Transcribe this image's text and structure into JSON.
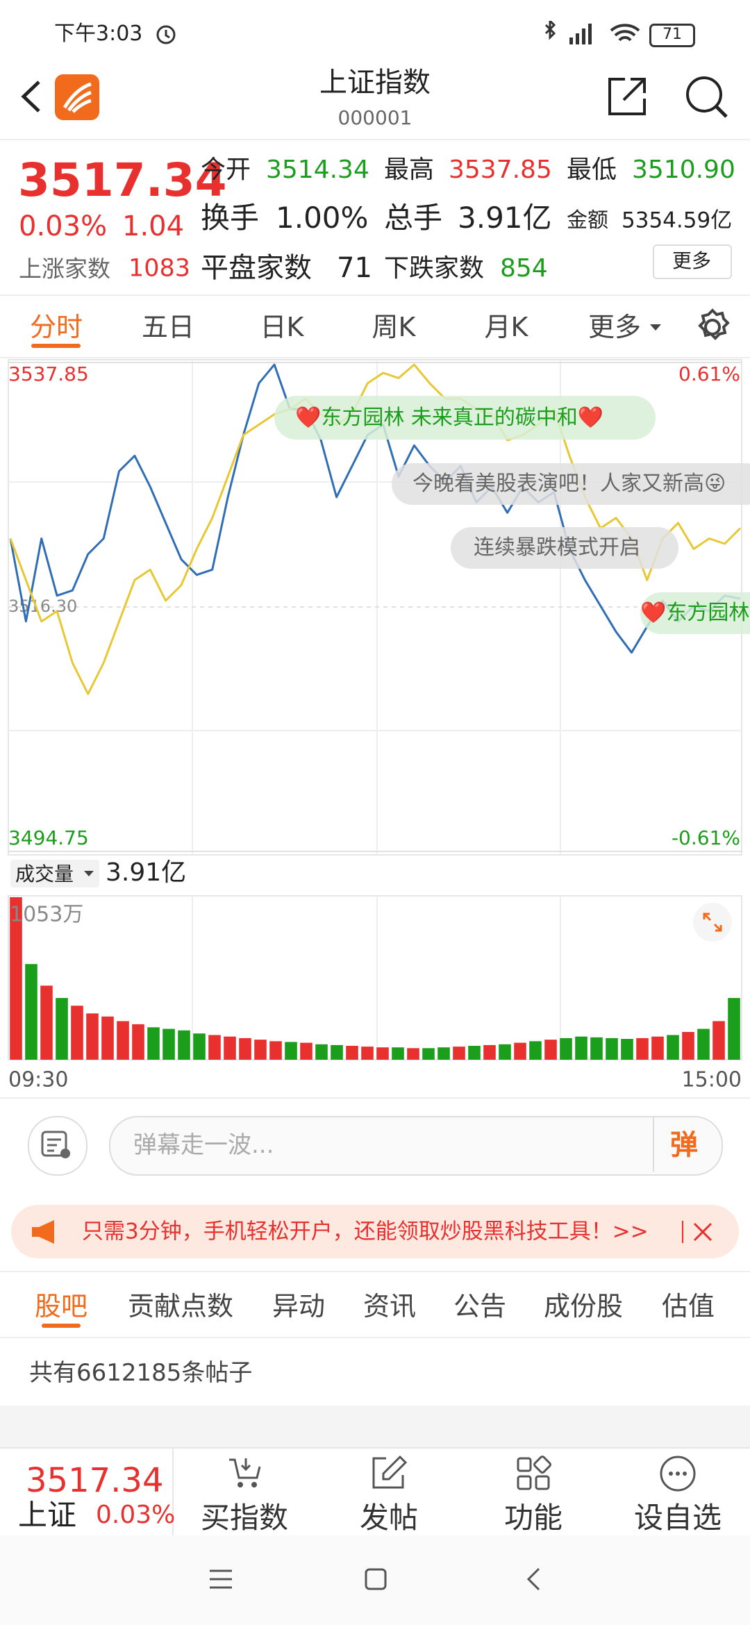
{
  "status_bar": {
    "time": "下午3:03",
    "battery": "71"
  },
  "header": {
    "title": "上证指数",
    "code": "000001"
  },
  "quote": {
    "price": "3517.34",
    "change_pct": "0.03%",
    "change": "1.04",
    "stats": [
      {
        "label": "今开",
        "value": "3514.34"
      },
      {
        "label": "最高",
        "value": "3537.85"
      },
      {
        "label": "最低",
        "value": "3510.90"
      },
      {
        "label": "换手",
        "value": "1.00%"
      },
      {
        "label": "总手",
        "value": "3.91亿"
      },
      {
        "label": "金额",
        "value": "5354.59亿"
      },
      {
        "label": "上涨家数",
        "value": "1083"
      },
      {
        "label": "平盘家数",
        "value": "71"
      },
      {
        "label": "下跌家数",
        "value": "854"
      }
    ],
    "more": "更多"
  },
  "tabs": [
    "分时",
    "五日",
    "日K",
    "周K",
    "月K",
    "更多"
  ],
  "chart_data": [
    {
      "type": "line",
      "series": [
        {
          "color": "#2f6db5",
          "values": [
            3522.33,
            3515.02,
            3522.33,
            3517.3,
            3517.76,
            3520.96,
            3522.33,
            3528.26,
            3529.63,
            3526.89,
            3523.7,
            3520.5,
            3519.13,
            3519.59,
            3525.98,
            3531.46,
            3536.02,
            3537.66,
            3533.74,
            3533.74,
            3531.0,
            3525.98,
            3528.72,
            3531.46,
            3532.37,
            3527.8,
            3530.54,
            3528.72,
            3527.35,
            3528.72,
            3525.52,
            3526.89,
            3524.61,
            3526.89,
            3525.52,
            3526.43,
            3521.41,
            3518.67,
            3516.39,
            3514.11,
            3512.28,
            3514.57,
            3516.85,
            3515.02,
            3516.39,
            3515.93,
            3517.3,
            3517.03
          ]
        },
        {
          "color": "#e8c832",
          "values": [
            3522.33,
            3518.67,
            3515.02,
            3515.93,
            3511.37,
            3508.63,
            3511.37,
            3515.02,
            3518.67,
            3519.59,
            3516.85,
            3518.22,
            3521.41,
            3524.15,
            3527.8,
            3531.46,
            3532.37,
            3533.28,
            3533.74,
            3534.65,
            3533.28,
            3532.37,
            3533.28,
            3536.02,
            3536.93,
            3536.48,
            3537.66,
            3536.02,
            3534.65,
            3534.65,
            3533.74,
            3533.28,
            3531.0,
            3531.46,
            3532.37,
            3533.74,
            3529.63,
            3525.98,
            3523.24,
            3524.15,
            3522.33,
            3518.67,
            3522.33,
            3523.7,
            3521.41,
            3522.33,
            3521.87,
            3523.24
          ]
        }
      ],
      "ylim": [
        3494.75,
        3537.85
      ],
      "yticks": [
        3537.85,
        {
          "value": 3516.3,
          "label": "3516.30"
        },
        3494.75
      ],
      "y2lim": [
        -0.61,
        0.61
      ],
      "y2ticks": [
        {
          "value": 0.61,
          "label": "0.61%"
        },
        {
          "value": -0.61,
          "label": "-0.61%"
        }
      ],
      "danmaku": [
        "❤️东方园林 未来真正的碳中和❤️",
        "今晚看美股表演吧！人家又新高😜",
        "连续暴跌模式开启",
        "❤️东方园林"
      ]
    },
    {
      "type": "bar",
      "title": "成交量",
      "subtitle": "3.91亿",
      "values": [
        1053,
        620,
        480,
        400,
        350,
        300,
        280,
        250,
        230,
        210,
        200,
        190,
        170,
        160,
        150,
        140,
        130,
        120,
        115,
        110,
        100,
        95,
        90,
        85,
        80,
        80,
        75,
        75,
        80,
        85,
        90,
        95,
        100,
        110,
        120,
        130,
        140,
        150,
        145,
        140,
        135,
        140,
        150,
        160,
        180,
        200,
        250,
        400
      ],
      "ylim": [
        0,
        1053
      ],
      "yticks": [
        {
          "value": 1053,
          "label": "1053万"
        }
      ],
      "xticks": [
        "09:30",
        "15:00"
      ]
    }
  ],
  "danmaku_input": {
    "placeholder": "弹幕走一波...",
    "button": "弹"
  },
  "banner": {
    "text": "只需3分钟，手机轻松开户，还能领取炒股黑科技工具！>>"
  },
  "section_tabs": [
    "股吧",
    "贡献点数",
    "异动",
    "资讯",
    "公告",
    "成份股",
    "估值"
  ],
  "post_count": "共有6612185条帖子",
  "bottom_bar": {
    "price": "3517.34",
    "name": "上证",
    "change": "0.03%",
    "actions": [
      "买指数",
      "发帖",
      "功能",
      "设自选"
    ]
  }
}
